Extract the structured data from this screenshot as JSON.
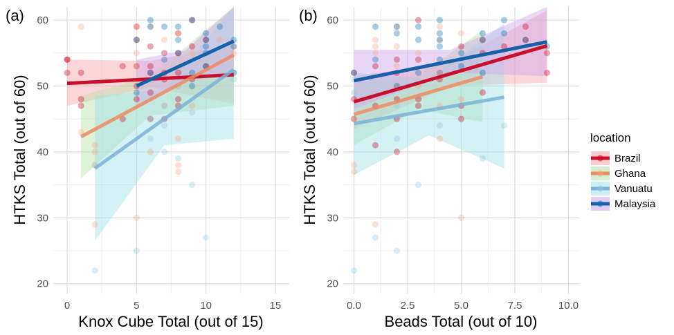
{
  "colors": {
    "Brazil": "#ca0020",
    "Ghana": "#f4a582",
    "Vanuatu": "#92c5de",
    "Malaysia": "#0571b0",
    "Brazil_line": "#c8102e",
    "Ghana_line": "#ee8a63",
    "Vanuatu_line": "#7bb3d6",
    "Malaysia_line": "#1660a8",
    "Brazil_band": "#f4a3a8",
    "Ghana_band": "#b7dfa7",
    "Vanuatu_band": "#9fe0e6",
    "Malaysia_band": "#cfa6ee"
  },
  "legend": {
    "title": "location",
    "entries": [
      "Brazil",
      "Ghana",
      "Vanuatu",
      "Malaysia"
    ]
  },
  "chart_data": [
    {
      "type": "scatter",
      "panel_label": "(a)",
      "xlabel": "Knox Cube Total (out of 15)",
      "ylabel": "HTKS Total (out of 60)",
      "xlim": [
        -1,
        16
      ],
      "ylim": [
        18.5,
        62
      ],
      "xticks": [
        0,
        5,
        10,
        15
      ],
      "xtick_labels": [
        "0",
        "5",
        "10",
        "15"
      ],
      "yticks": [
        20,
        30,
        40,
        50,
        60
      ],
      "ytick_labels": [
        "20",
        "30",
        "40",
        "50",
        "60"
      ],
      "grid": true,
      "series": [
        {
          "name": "Brazil",
          "points": [
            [
              0,
              54
            ],
            [
              0,
              52
            ],
            [
              0,
              54
            ],
            [
              1,
              52
            ],
            [
              1,
              48
            ],
            [
              1,
              47
            ],
            [
              4,
              53
            ],
            [
              4,
              45
            ],
            [
              5,
              59
            ],
            [
              5,
              57
            ],
            [
              5,
              53
            ],
            [
              5,
              50
            ],
            [
              5,
              48
            ],
            [
              6,
              56
            ],
            [
              6,
              53
            ],
            [
              6,
              52
            ],
            [
              6,
              49
            ],
            [
              6,
              45
            ],
            [
              7,
              55
            ],
            [
              7,
              52
            ],
            [
              7,
              51
            ],
            [
              7,
              45
            ],
            [
              8,
              58
            ],
            [
              8,
              55
            ],
            [
              8,
              52
            ],
            [
              8,
              48
            ],
            [
              8,
              47
            ],
            [
              9,
              60
            ],
            [
              9,
              56
            ],
            [
              9,
              51
            ],
            [
              10,
              57
            ],
            [
              10,
              53
            ]
          ],
          "fit": {
            "x": [
              0,
              12
            ],
            "y": [
              50.4,
              51.7
            ]
          },
          "band": {
            "x": [
              0,
              6,
              12
            ],
            "lower": [
              47.0,
              49.8,
              47.3
            ],
            "upper": [
              54.0,
              53.8,
              56.3
            ]
          }
        },
        {
          "name": "Ghana",
          "points": [
            [
              1,
              59
            ],
            [
              1,
              43
            ],
            [
              2,
              41
            ],
            [
              2,
              40
            ],
            [
              2,
              38
            ],
            [
              2,
              29
            ],
            [
              5,
              59
            ],
            [
              5,
              55
            ],
            [
              5,
              53
            ],
            [
              5,
              30
            ],
            [
              6,
              59
            ],
            [
              6,
              40
            ],
            [
              7,
              57
            ],
            [
              7,
              47
            ],
            [
              8,
              58
            ],
            [
              8,
              50
            ],
            [
              8,
              42
            ],
            [
              8,
              38
            ],
            [
              8,
              37
            ],
            [
              9,
              55
            ],
            [
              9,
              47
            ],
            [
              11,
              57
            ],
            [
              12,
              56
            ],
            [
              12,
              55
            ]
          ],
          "fit": {
            "x": [
              1,
              12
            ],
            "y": [
              42.3,
              54.7
            ]
          },
          "band": {
            "x": [
              1,
              6,
              12
            ],
            "lower": [
              36.0,
              45.5,
              47.0
            ],
            "upper": [
              48.5,
              51.5,
              62.0
            ]
          }
        },
        {
          "name": "Vanuatu",
          "points": [
            [
              2,
              38
            ],
            [
              2,
              22
            ],
            [
              5,
              25
            ],
            [
              6,
              42
            ],
            [
              6,
              45
            ],
            [
              7,
              47
            ],
            [
              7,
              44
            ],
            [
              7,
              40
            ],
            [
              8,
              39
            ],
            [
              8,
              50
            ],
            [
              9,
              46
            ],
            [
              9,
              35
            ],
            [
              10,
              27
            ],
            [
              12,
              52
            ],
            [
              12,
              51
            ]
          ],
          "fit": {
            "x": [
              2,
              12
            ],
            "y": [
              37.5,
              52.5
            ]
          },
          "band": {
            "x": [
              2,
              7,
              12
            ],
            "lower": [
              26.5,
              41.0,
              42.0
            ],
            "upper": [
              48.5,
              49.5,
              62.0
            ]
          }
        },
        {
          "name": "Malaysia",
          "points": [
            [
              5,
              57
            ],
            [
              5,
              49
            ],
            [
              6,
              60
            ],
            [
              6,
              59
            ],
            [
              6,
              52
            ],
            [
              7,
              59
            ],
            [
              7,
              54
            ],
            [
              8,
              59
            ],
            [
              8,
              57
            ],
            [
              8,
              55
            ],
            [
              9,
              60
            ],
            [
              9,
              52
            ],
            [
              9,
              50
            ],
            [
              10,
              58
            ],
            [
              10,
              57
            ],
            [
              10,
              56
            ],
            [
              10,
              55
            ],
            [
              10,
              53
            ],
            [
              11,
              59
            ],
            [
              12,
              57
            ],
            [
              12,
              56
            ],
            [
              12,
              52
            ]
          ],
          "fit": {
            "x": [
              5,
              12
            ],
            "y": [
              50.0,
              56.8
            ]
          },
          "band": {
            "x": [
              5,
              8.5,
              12
            ],
            "lower": [
              46.5,
              51.0,
              51.8
            ],
            "upper": [
              54.0,
              55.4,
              62.0
            ]
          }
        }
      ]
    },
    {
      "type": "scatter",
      "panel_label": "(b)",
      "xlabel": "Beads Total (out of 10)",
      "ylabel": "HTKS Total (out of 60)",
      "xlim": [
        -0.5,
        10.5
      ],
      "ylim": [
        18.5,
        62
      ],
      "xticks": [
        0,
        2.5,
        5,
        7.5,
        10
      ],
      "xtick_labels": [
        "0.0",
        "2.5",
        "5.0",
        "7.5",
        "10.0"
      ],
      "yticks": [
        20,
        30,
        40,
        50,
        60
      ],
      "ytick_labels": [
        "20",
        "30",
        "40",
        "50",
        "60"
      ],
      "grid": true,
      "series": [
        {
          "name": "Brazil",
          "points": [
            [
              0,
              52
            ],
            [
              0,
              48
            ],
            [
              0,
              45
            ],
            [
              1,
              53
            ],
            [
              1,
              47
            ],
            [
              1,
              41
            ],
            [
              2,
              54
            ],
            [
              2,
              52
            ],
            [
              2,
              48
            ],
            [
              2,
              45
            ],
            [
              2,
              40
            ],
            [
              3,
              60
            ],
            [
              3,
              54
            ],
            [
              3,
              48
            ],
            [
              3,
              47
            ],
            [
              4,
              52
            ],
            [
              4,
              51
            ],
            [
              5,
              56
            ],
            [
              5,
              47
            ],
            [
              5,
              45
            ],
            [
              6,
              57
            ],
            [
              6,
              55
            ],
            [
              6,
              49
            ],
            [
              7,
              56
            ],
            [
              8,
              59
            ],
            [
              8,
              57
            ],
            [
              9,
              55
            ],
            [
              9,
              52
            ]
          ],
          "fit": {
            "x": [
              0,
              9
            ],
            "y": [
              47.6,
              56.1
            ]
          },
          "band": {
            "x": [
              0,
              4.5,
              9
            ],
            "lower": [
              43.5,
              50.0,
              50.5
            ],
            "upper": [
              51.5,
              53.5,
              61.5
            ]
          }
        },
        {
          "name": "Ghana",
          "points": [
            [
              0,
              38
            ],
            [
              0,
              37
            ],
            [
              0,
              45
            ],
            [
              1,
              57
            ],
            [
              1,
              56
            ],
            [
              1,
              55
            ],
            [
              1,
              29
            ],
            [
              2,
              59
            ],
            [
              2,
              56
            ],
            [
              2,
              53
            ],
            [
              2,
              50
            ],
            [
              3,
              55
            ],
            [
              3,
              50
            ],
            [
              4,
              59
            ],
            [
              4,
              57
            ],
            [
              4,
              47
            ],
            [
              4,
              42
            ],
            [
              5,
              58
            ],
            [
              5,
              48
            ],
            [
              5,
              30
            ],
            [
              6,
              57
            ]
          ],
          "fit": {
            "x": [
              0,
              6
            ],
            "y": [
              45.7,
              51.4
            ]
          },
          "band": {
            "x": [
              0,
              3,
              6
            ],
            "lower": [
              41.0,
              46.5,
              44.5
            ],
            "upper": [
              50.5,
              51.5,
              58.5
            ]
          }
        },
        {
          "name": "Vanuatu",
          "points": [
            [
              0,
              51
            ],
            [
              0,
              49
            ],
            [
              0,
              22
            ],
            [
              1,
              27
            ],
            [
              2,
              25
            ],
            [
              2,
              42
            ],
            [
              2,
              47
            ],
            [
              3,
              35
            ],
            [
              4,
              44
            ],
            [
              4,
              52
            ],
            [
              5,
              53
            ],
            [
              6,
              52
            ],
            [
              6,
              39
            ],
            [
              7,
              44
            ]
          ],
          "fit": {
            "x": [
              0,
              7
            ],
            "y": [
              44.3,
              48.3
            ]
          },
          "band": {
            "x": [
              0,
              3.5,
              7
            ],
            "lower": [
              36.5,
              42.5,
              37.5
            ],
            "upper": [
              52.0,
              51.0,
              59.5
            ]
          }
        },
        {
          "name": "Malaysia",
          "points": [
            [
              0,
              52
            ],
            [
              1,
              59
            ],
            [
              1,
              54
            ],
            [
              2,
              59
            ],
            [
              2,
              58
            ],
            [
              2,
              50
            ],
            [
              3,
              59
            ],
            [
              3,
              57
            ],
            [
              3,
              52
            ],
            [
              4,
              60
            ],
            [
              4,
              58
            ],
            [
              4,
              57
            ],
            [
              4,
              56
            ],
            [
              4,
              54
            ],
            [
              5,
              55
            ],
            [
              5,
              53
            ],
            [
              6,
              58
            ],
            [
              6,
              57
            ],
            [
              6,
              52
            ],
            [
              7,
              60
            ],
            [
              7,
              58
            ],
            [
              8,
              57
            ],
            [
              9,
              56
            ]
          ],
          "fit": {
            "x": [
              0,
              9
            ],
            "y": [
              50.8,
              56.7
            ]
          },
          "band": {
            "x": [
              0,
              4.5,
              9
            ],
            "lower": [
              46.5,
              52.0,
              51.5
            ],
            "upper": [
              55.5,
              55.5,
              62.0
            ]
          }
        }
      ]
    }
  ]
}
